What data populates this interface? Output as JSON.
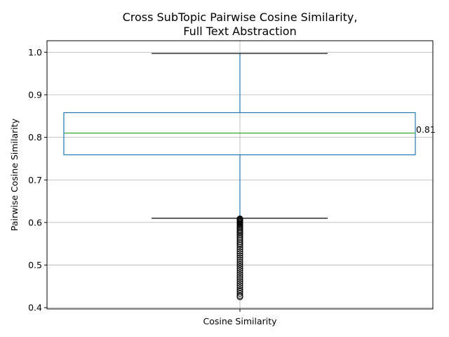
{
  "chart_data": {
    "type": "box",
    "title_lines": [
      "Cross SubTopic Pairwise Cosine Similarity,",
      "Full Text Abstraction"
    ],
    "xlabel": "",
    "ylabel": "Pairwise Cosine Similarity",
    "categories": [
      "Cosine Similarity"
    ],
    "ylim": [
      0.397,
      1.027
    ],
    "yticks": [
      0.4,
      0.5,
      0.6,
      0.7,
      0.8,
      0.9,
      1.0
    ],
    "ytick_labels": [
      "0.4",
      "0.5",
      "0.6",
      "0.7",
      "0.8",
      "0.9",
      "1.0"
    ],
    "grid": true,
    "box": {
      "q1": 0.759,
      "median": 0.81,
      "q3": 0.858,
      "whisker_low": 0.61,
      "whisker_high": 0.997
    },
    "median_annotation": "0.81",
    "outliers": [
      0.425,
      0.428,
      0.433,
      0.438,
      0.442,
      0.447,
      0.452,
      0.457,
      0.462,
      0.467,
      0.472,
      0.477,
      0.482,
      0.487,
      0.492,
      0.497,
      0.502,
      0.507,
      0.512,
      0.517,
      0.522,
      0.527,
      0.532,
      0.537,
      0.542,
      0.547,
      0.551,
      0.555,
      0.559,
      0.563,
      0.567,
      0.571,
      0.575,
      0.578,
      0.581,
      0.584,
      0.587,
      0.59,
      0.593,
      0.596,
      0.598,
      0.6,
      0.602,
      0.604,
      0.606,
      0.607,
      0.608,
      0.609
    ],
    "colors": {
      "box": "#1f77b4",
      "median": "#2ca02c",
      "whisker_cap": "#000000",
      "grid": "#b0b0b0",
      "axis": "#000000",
      "outlier": "#000000"
    }
  }
}
